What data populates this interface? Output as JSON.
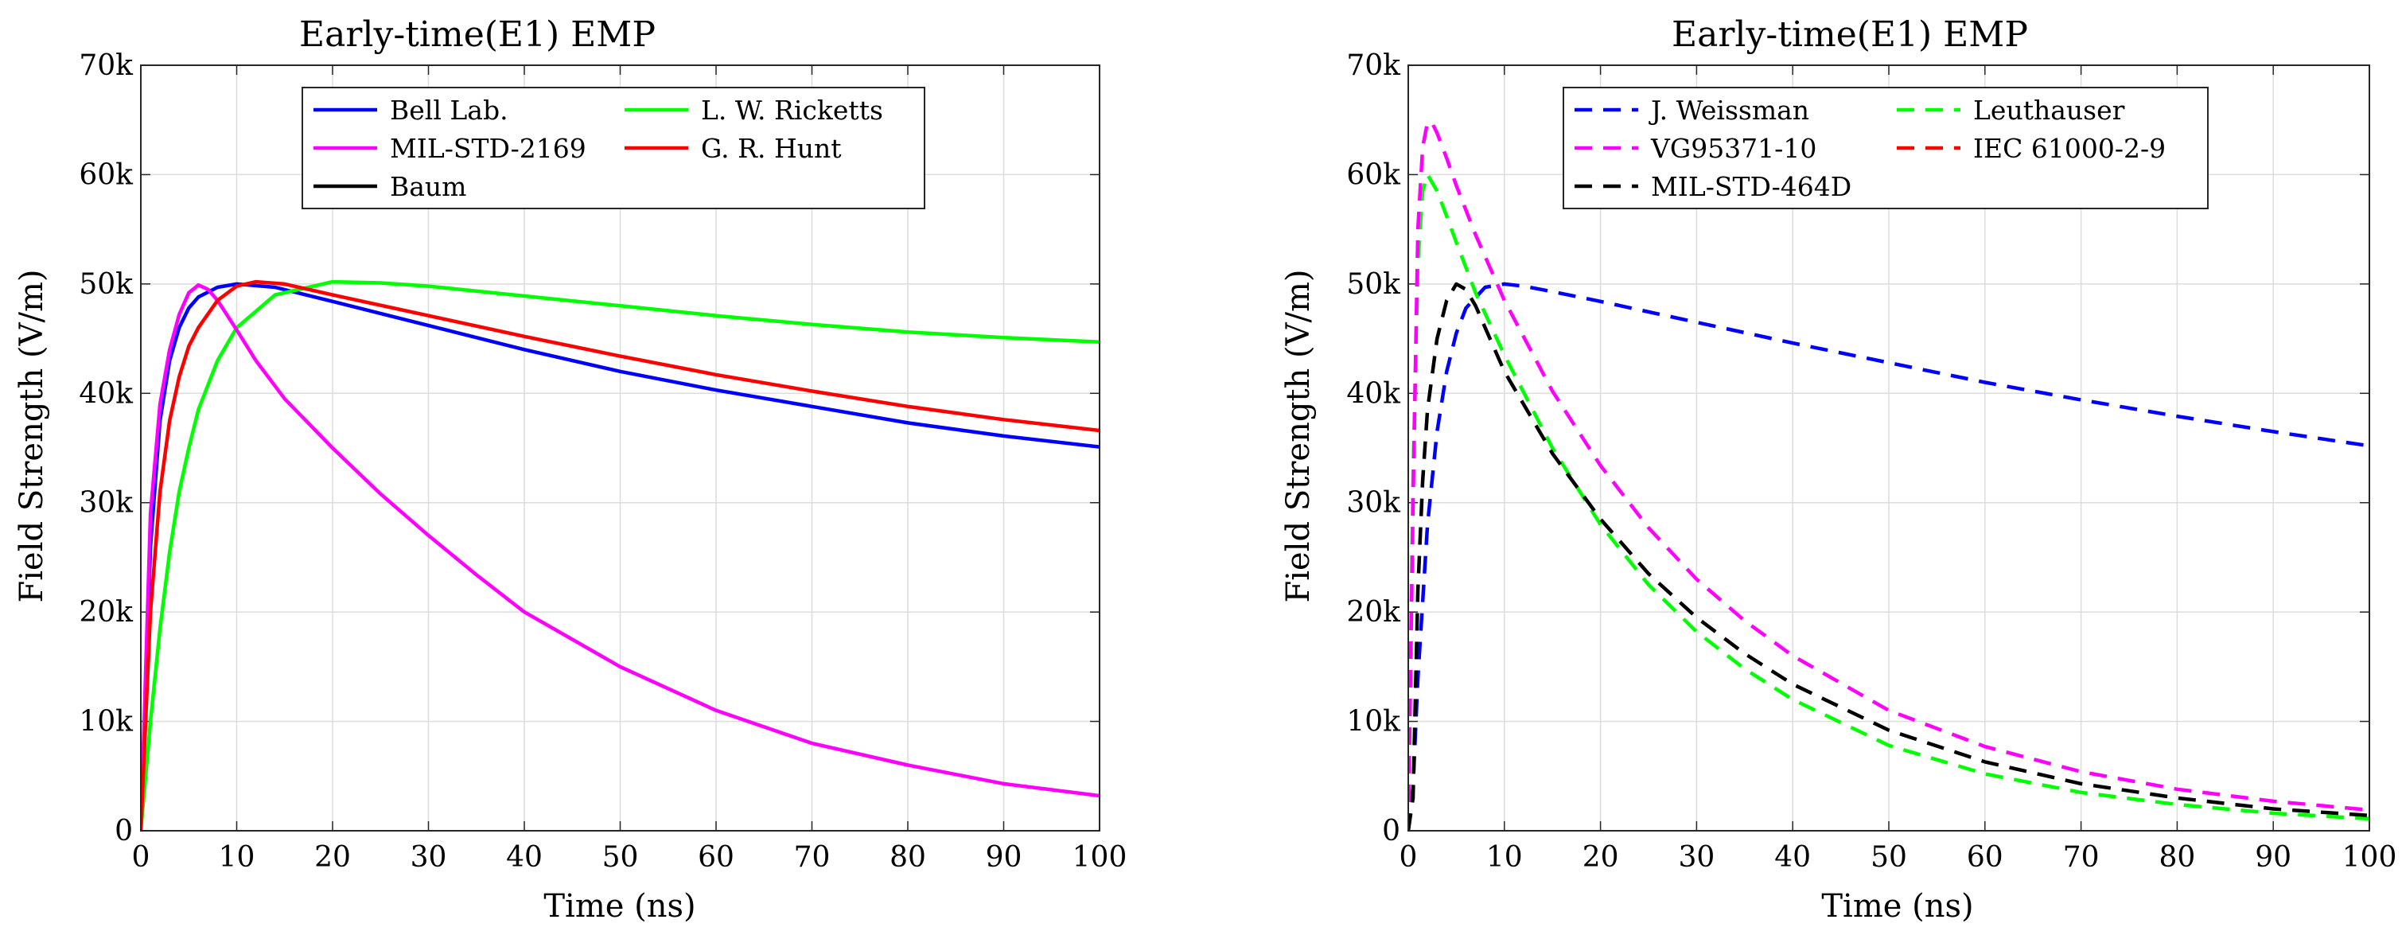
{
  "chart_data": [
    {
      "type": "line",
      "title": "Early-time(E1) EMP",
      "xlabel": "Time (ns)",
      "ylabel": "Field Strength (V/m)",
      "xlim": [
        0,
        100
      ],
      "ylim": [
        0,
        70000
      ],
      "xticks": [
        "0",
        "10",
        "20",
        "30",
        "40",
        "50",
        "60",
        "70",
        "80",
        "90",
        "100"
      ],
      "yticks": [
        "0",
        "10k",
        "20k",
        "30k",
        "40k",
        "50k",
        "60k",
        "70k"
      ],
      "grid": true,
      "legend_position": "top",
      "legend_columns": 2,
      "series": [
        {
          "name": "Bell Lab.",
          "color": "#0000ff",
          "dash": "solid",
          "x": [
            0,
            1,
            2,
            3,
            4,
            5,
            6,
            8,
            10,
            14,
            20,
            30,
            40,
            50,
            60,
            70,
            80,
            90,
            100
          ],
          "y": [
            0,
            26000,
            37500,
            43000,
            46000,
            47800,
            48800,
            49700,
            50000,
            49700,
            48400,
            46200,
            44000,
            42000,
            40300,
            38800,
            37300,
            36100,
            35100
          ]
        },
        {
          "name": "L. W. Ricketts",
          "color": "#00ff00",
          "dash": "solid",
          "x": [
            0,
            1,
            2,
            3,
            4,
            5,
            6,
            8,
            10,
            14,
            20,
            25,
            30,
            40,
            50,
            60,
            70,
            80,
            90,
            100
          ],
          "y": [
            0,
            10000,
            18500,
            25500,
            31000,
            35000,
            38500,
            43000,
            46000,
            49000,
            50200,
            50100,
            49800,
            48900,
            48000,
            47100,
            46300,
            45600,
            45100,
            44700
          ]
        },
        {
          "name": "MIL-STD-2169",
          "color": "#ff00ff",
          "dash": "solid",
          "x": [
            0,
            1,
            2,
            3,
            4,
            5,
            6,
            7,
            8,
            10,
            12,
            15,
            20,
            25,
            30,
            35,
            40,
            50,
            60,
            70,
            80,
            90,
            100
          ],
          "y": [
            0,
            29000,
            39000,
            44000,
            47200,
            49200,
            49900,
            49500,
            48500,
            45800,
            43000,
            39500,
            35000,
            30800,
            27000,
            23400,
            20000,
            15000,
            11000,
            8000,
            6000,
            4300,
            3200
          ]
        },
        {
          "name": "G. R. Hunt",
          "color": "#ff0000",
          "dash": "solid",
          "x": [
            0,
            1,
            2,
            3,
            4,
            5,
            6,
            8,
            10,
            12,
            15,
            20,
            30,
            40,
            50,
            60,
            70,
            80,
            90,
            100
          ],
          "y": [
            0,
            20000,
            31000,
            37500,
            41500,
            44300,
            46000,
            48500,
            49800,
            50200,
            50000,
            49000,
            47100,
            45200,
            43400,
            41700,
            40200,
            38800,
            37600,
            36600
          ]
        },
        {
          "name": "Baum",
          "color": "#000000",
          "dash": "solid",
          "x": [],
          "y": []
        }
      ]
    },
    {
      "type": "line",
      "title": "Early-time(E1) EMP",
      "xlabel": "Time (ns)",
      "ylabel": "Field Strength (V/m)",
      "xlim": [
        0,
        100
      ],
      "ylim": [
        0,
        70000
      ],
      "xticks": [
        "0",
        "10",
        "20",
        "30",
        "40",
        "50",
        "60",
        "70",
        "80",
        "90",
        "100"
      ],
      "yticks": [
        "0",
        "10k",
        "20k",
        "30k",
        "40k",
        "50k",
        "60k",
        "70k"
      ],
      "grid": true,
      "legend_position": "top",
      "legend_columns": 2,
      "series": [
        {
          "name": "J. Weissman",
          "color": "#0000ff",
          "dash": "dashed",
          "x": [
            0,
            0.5,
            1,
            2,
            3,
            4,
            5,
            6,
            8,
            10,
            12,
            15,
            20,
            30,
            40,
            50,
            60,
            70,
            80,
            90,
            100
          ],
          "y": [
            0,
            4000,
            14000,
            28000,
            36500,
            42000,
            45500,
            47800,
            49700,
            50000,
            49800,
            49300,
            48400,
            46500,
            44600,
            42800,
            41000,
            39400,
            37900,
            36500,
            35200
          ]
        },
        {
          "name": "Leuthauser",
          "color": "#00ff00",
          "dash": "dashed",
          "x": [
            0,
            0.5,
            1,
            1.5,
            2,
            3,
            4,
            5,
            7,
            10,
            15,
            20,
            25,
            30,
            35,
            40,
            50,
            60,
            70,
            80,
            90,
            100
          ],
          "y": [
            0,
            32000,
            52000,
            58500,
            60000,
            58500,
            56200,
            53800,
            49200,
            43500,
            35000,
            28000,
            22500,
            18200,
            14800,
            12000,
            7800,
            5200,
            3500,
            2400,
            1600,
            1100
          ]
        },
        {
          "name": "VG95371-10",
          "color": "#ff00ff",
          "dash": "dashed",
          "x": [
            0,
            0.5,
            1,
            1.5,
            2,
            2.5,
            3,
            4,
            5,
            7,
            10,
            15,
            20,
            25,
            30,
            35,
            40,
            50,
            60,
            70,
            80,
            90,
            100
          ],
          "y": [
            0,
            30000,
            55000,
            62500,
            64800,
            64700,
            63800,
            61500,
            59000,
            54500,
            48500,
            40200,
            33400,
            27700,
            23000,
            19200,
            16000,
            11000,
            7700,
            5400,
            3800,
            2700,
            1900
          ]
        },
        {
          "name": "IEC 61000-2-9",
          "color": "#ff0000",
          "dash": "dashed",
          "x": [],
          "y": []
        },
        {
          "name": "MIL-STD-464D",
          "color": "#000000",
          "dash": "dashed",
          "x": [
            0,
            0.5,
            1,
            1.5,
            2,
            3,
            4,
            5,
            6,
            7,
            10,
            15,
            20,
            25,
            30,
            35,
            40,
            50,
            60,
            70,
            80,
            90,
            100
          ],
          "y": [
            0,
            3000,
            22000,
            32000,
            38500,
            45000,
            48500,
            50000,
            49500,
            48000,
            42000,
            34500,
            28500,
            23500,
            19500,
            16200,
            13400,
            9200,
            6300,
            4300,
            3000,
            2000,
            1400
          ]
        }
      ]
    }
  ]
}
